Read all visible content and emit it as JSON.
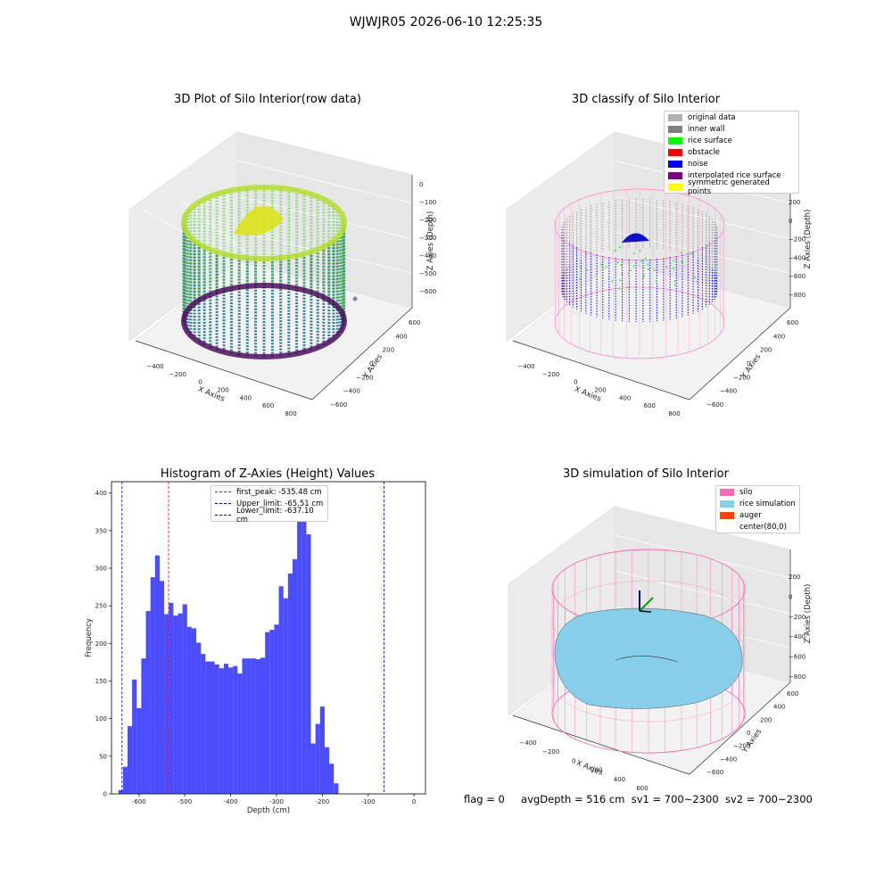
{
  "suptitle": "WJWJR05 2026-06-10 12:25:35",
  "footer": {
    "flag": "flag = 0",
    "avg_depth": "avgDepth = 516 cm",
    "sv1": "sv1 = 700~2300",
    "sv2": "sv2 = 700~2300"
  },
  "panel_raw": {
    "title": "3D Plot of Silo Interior(row data)",
    "xlabel": "X Axies",
    "ylabel": "Y Axies",
    "zlabel": "Z Axies (Depth)",
    "xticks": [
      "−400",
      "−200",
      "0",
      "200",
      "400",
      "600",
      "800"
    ],
    "yticks": [
      "−600",
      "−400",
      "−200",
      "0",
      "200",
      "400",
      "600"
    ],
    "zticks": [
      "0",
      "−100",
      "−200",
      "−300",
      "−400",
      "−500",
      "−600"
    ]
  },
  "panel_classify": {
    "title": "3D classify of Silo Interior",
    "xlabel": "X Axies",
    "ylabel": "Y Axies",
    "zlabel": "Z Axies (Depth)",
    "xticks": [
      "−400",
      "−200",
      "0",
      "200",
      "400",
      "600",
      "800"
    ],
    "yticks": [
      "−600",
      "−400",
      "−200",
      "0",
      "200",
      "400",
      "600"
    ],
    "zticks": [
      "200",
      "0",
      "−200",
      "−400",
      "−600",
      "−800"
    ],
    "legend": [
      {
        "label": "original data",
        "color": "#b0b0b0"
      },
      {
        "label": "inner wall",
        "color": "#808080"
      },
      {
        "label": "rice surface",
        "color": "#00ff00"
      },
      {
        "label": "obstacle",
        "color": "#ff0000"
      },
      {
        "label": "noise",
        "color": "#0000ff"
      },
      {
        "label": "interpolated rice surface",
        "color": "#800080"
      },
      {
        "label": "symmetric generated points",
        "color": "#ffff00"
      }
    ]
  },
  "panel_sim": {
    "title": "3D simulation of Silo Interior",
    "xlabel": "X Axies",
    "ylabel": "Y Axies",
    "zlabel": "Z Axies (Depth)",
    "xticks": [
      "−400",
      "−200",
      "0",
      "200",
      "400",
      "600"
    ],
    "yticks": [
      "−600",
      "−400",
      "−200",
      "0",
      "200",
      "400",
      "600"
    ],
    "zticks": [
      "200",
      "0",
      "−200",
      "−400",
      "−600",
      "−800"
    ],
    "legend": [
      {
        "label": "silo",
        "color": "#ff69b4"
      },
      {
        "label": "rice simulation",
        "color": "#87ceeb"
      },
      {
        "label": "auger",
        "color": "#ff4500"
      },
      {
        "label": "center(80,0)",
        "color": "none"
      }
    ]
  },
  "chart_data": {
    "type": "bar",
    "title": "Histogram of Z-Axies (Height) Values",
    "xlabel": "Depth (cm)",
    "ylabel": "Frequency",
    "xlim": [
      -660,
      25
    ],
    "ylim": [
      0,
      415
    ],
    "xticks": [
      -600,
      -500,
      -400,
      -300,
      -200,
      -100,
      0
    ],
    "yticks": [
      0,
      50,
      100,
      150,
      200,
      250,
      300,
      350,
      400
    ],
    "bar_color": "#0000ff",
    "bins_start": -645,
    "bin_width": 10,
    "values": [
      5,
      36,
      90,
      152,
      114,
      180,
      243,
      288,
      317,
      283,
      239,
      254,
      237,
      240,
      252,
      222,
      220,
      201,
      186,
      176,
      176,
      172,
      167,
      173,
      168,
      170,
      160,
      180,
      180,
      180,
      179,
      181,
      215,
      218,
      225,
      276,
      260,
      293,
      312,
      367,
      396,
      345,
      67,
      93,
      116,
      62,
      40,
      14
    ],
    "vlines": [
      {
        "label": "first_peak: -535.48 cm",
        "x": -535.48,
        "color": "#ff0000"
      },
      {
        "label": "Upper_limit: -65.51 cm",
        "x": -65.51,
        "color": "#0000cc"
      },
      {
        "label": "Lower_limit: -637.10 cm",
        "x": -637.1,
        "color": "#0000cc"
      }
    ]
  }
}
